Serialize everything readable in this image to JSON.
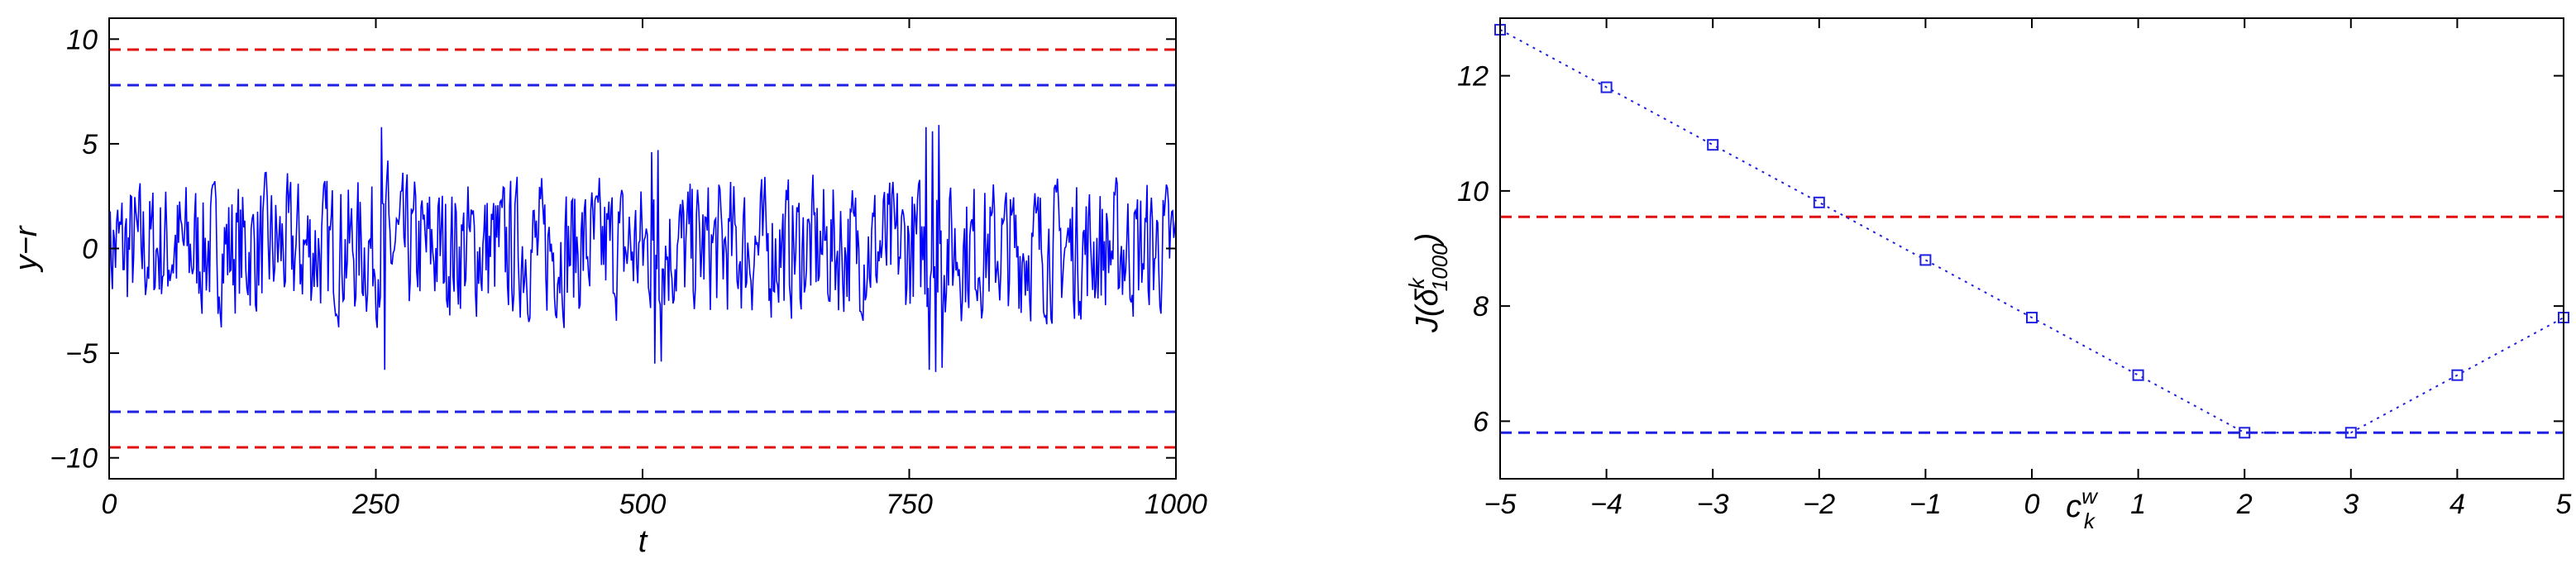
{
  "chart_data": [
    {
      "type": "line",
      "xlabel": "t",
      "ylabel": "y−r",
      "xlim": [
        0,
        1000
      ],
      "ylim": [
        -11,
        11
      ],
      "xticks": [
        0,
        250,
        500,
        750,
        1000
      ],
      "xtick_labels": [
        "0",
        "250",
        "500",
        "750",
        "1000"
      ],
      "yticks": [
        -10,
        -5,
        0,
        5,
        10
      ],
      "ytick_labels": [
        "−10",
        "−5",
        "0",
        "5",
        "10"
      ],
      "hlines": [
        {
          "y": 9.5,
          "color": "#e01010",
          "style": "dashed"
        },
        {
          "y": 7.8,
          "color": "#2020e0",
          "style": "dashed"
        },
        {
          "y": -7.8,
          "color": "#2020e0",
          "style": "dashed"
        },
        {
          "y": -9.5,
          "color": "#e01010",
          "style": "dashed"
        }
      ],
      "series": [
        {
          "color": "#0000ff",
          "description_kind": "noise",
          "n_points": 1000,
          "amplitude_typical": 2.0,
          "bursts": [
            {
              "t": 255,
              "values": [
                5.8,
                -5.8,
                4.2
              ]
            },
            {
              "t": 508,
              "values": [
                4.6,
                -5.5,
                4.7,
                -5.4
              ]
            },
            {
              "t": 765,
              "values": [
                5.8,
                -5.8,
                5.6,
                -5.9,
                5.9,
                -5.7
              ]
            }
          ]
        }
      ],
      "grid": false
    },
    {
      "type": "line",
      "xlabel": "c",
      "xlabel_sup": "w",
      "xlabel_sub": "k",
      "ylabel": "J(δ",
      "ylabel_sup": "k",
      "ylabel_sub": "1000",
      "ylabel_close": ")",
      "xlim": [
        -5,
        5
      ],
      "ylim": [
        5,
        13
      ],
      "xticks": [
        -5,
        -4,
        -3,
        -2,
        -1,
        0,
        1,
        2,
        3,
        4,
        5
      ],
      "xtick_labels": [
        "−5",
        "−4",
        "−3",
        "−2",
        "−1",
        "0",
        "1",
        "2",
        "3",
        "4",
        "5"
      ],
      "yticks": [
        6,
        8,
        10,
        12
      ],
      "ytick_labels": [
        "6",
        "8",
        "10",
        "12"
      ],
      "hlines": [
        {
          "y": 9.55,
          "color": "#e01010",
          "style": "dashed"
        },
        {
          "y": 5.8,
          "color": "#2020e0",
          "style": "dashed"
        }
      ],
      "series": [
        {
          "color": "#2020e0",
          "marker": "square",
          "line_style": "dotted",
          "x": [
            -5,
            -4,
            -3,
            -2,
            -1,
            0,
            1,
            2,
            3,
            4,
            5
          ],
          "y": [
            12.8,
            11.8,
            10.8,
            9.8,
            8.8,
            7.8,
            6.8,
            5.8,
            5.8,
            6.8,
            7.8
          ]
        }
      ],
      "grid": false
    }
  ]
}
